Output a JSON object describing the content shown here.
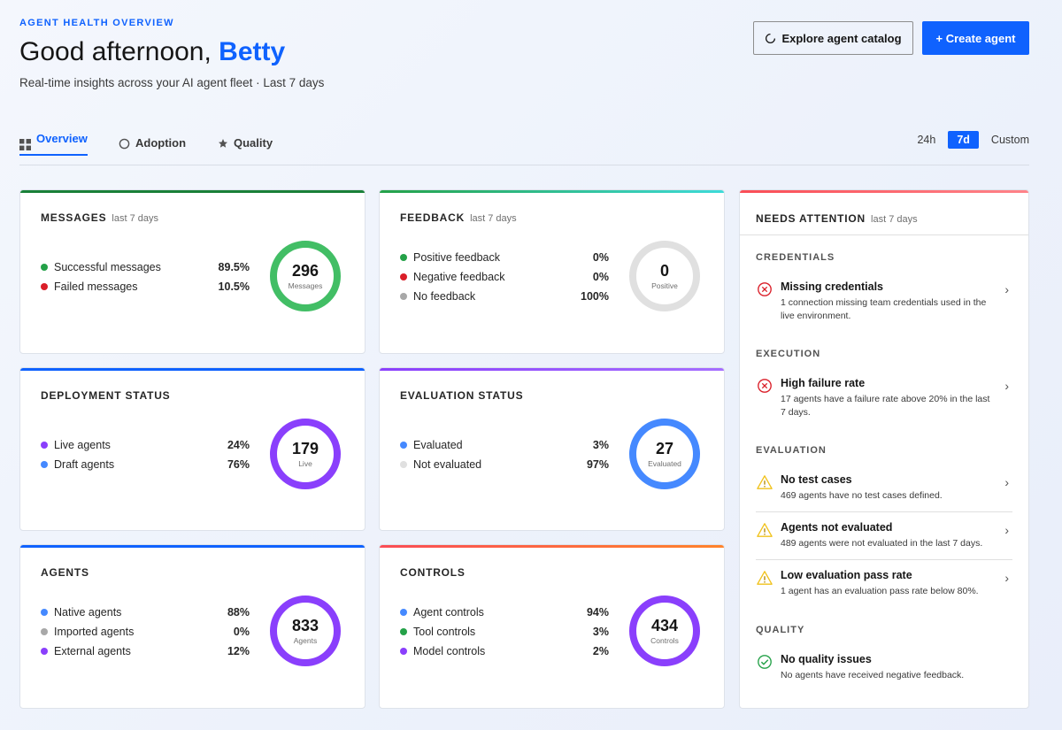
{
  "header": {
    "eyebrow": "AGENT HEALTH OVERVIEW",
    "greeting_prefix": "Good afternoon, ",
    "user_name": "Betty",
    "subtitle": "Real-time insights across your AI agent fleet · Last 7 days"
  },
  "actions": {
    "explore_label": "Explore agent catalog",
    "create_label": "+ Create agent"
  },
  "tabs": [
    {
      "label": "Overview",
      "icon": "grid-icon",
      "active": true
    },
    {
      "label": "Adoption",
      "icon": "circle-icon",
      "active": false
    },
    {
      "label": "Quality",
      "icon": "star-icon",
      "active": false
    }
  ],
  "time_range": {
    "options": [
      "24h",
      "7d",
      "Custom"
    ],
    "selected": "7d"
  },
  "cards": {
    "messages": {
      "title": "MESSAGES",
      "subtitle": "last 7 days",
      "rows": [
        {
          "label": "Successful messages",
          "pct": "89.5%",
          "color": "#24a148"
        },
        {
          "label": "Failed messages",
          "pct": "10.5%",
          "color": "#da1e28"
        }
      ],
      "ring_value": "296",
      "ring_caption": "Messages",
      "ring_color": "#42be65",
      "accent": "#198038"
    },
    "feedback": {
      "title": "FEEDBACK",
      "subtitle": "last 7 days",
      "rows": [
        {
          "label": "Positive feedback",
          "pct": "0%",
          "color": "#24a148"
        },
        {
          "label": "Negative feedback",
          "pct": "0%",
          "color": "#da1e28"
        },
        {
          "label": "No feedback",
          "pct": "100%",
          "color": "#a8a8a8"
        }
      ],
      "ring_value": "0",
      "ring_caption": "Positive",
      "ring_color": "#e0e0e0",
      "accent": "#3ddbd9"
    },
    "deployment": {
      "title": "DEPLOYMENT STATUS",
      "rows": [
        {
          "label": "Live agents",
          "pct": "24%",
          "color": "#8a3ffc"
        },
        {
          "label": "Draft agents",
          "pct": "76%",
          "color": "#4589ff"
        }
      ],
      "ring_value": "179",
      "ring_caption": "Live",
      "ring_color": "#8a3ffc",
      "accent": "#0f62fe"
    },
    "evaluation": {
      "title": "EVALUATION STATUS",
      "rows": [
        {
          "label": "Evaluated",
          "pct": "3%",
          "color": "#4589ff"
        },
        {
          "label": "Not evaluated",
          "pct": "97%",
          "color": "#e0e0e0"
        }
      ],
      "ring_value": "27",
      "ring_caption": "Evaluated",
      "ring_color": "#4589ff",
      "accent": "#8a3ffc"
    },
    "agents": {
      "title": "AGENTS",
      "rows": [
        {
          "label": "Native agents",
          "pct": "88%",
          "color": "#4589ff"
        },
        {
          "label": "Imported agents",
          "pct": "0%",
          "color": "#a8a8a8"
        },
        {
          "label": "External agents",
          "pct": "12%",
          "color": "#8a3ffc"
        }
      ],
      "ring_value": "833",
      "ring_caption": "Agents",
      "ring_color": "#8a3ffc",
      "accent": "#0f62fe"
    },
    "controls": {
      "title": "CONTROLS",
      "rows": [
        {
          "label": "Agent controls",
          "pct": "94%",
          "color": "#4589ff"
        },
        {
          "label": "Tool controls",
          "pct": "3%",
          "color": "#24a148"
        },
        {
          "label": "Model controls",
          "pct": "2%",
          "color": "#8a3ffc"
        }
      ],
      "ring_value": "434",
      "ring_caption": "Controls",
      "ring_color": "#8a3ffc",
      "accent": "#ff832b"
    }
  },
  "attention": {
    "title": "NEEDS ATTENTION",
    "subtitle": "last 7 days",
    "sections": {
      "credentials": {
        "label": "CREDENTIALS",
        "issues": [
          {
            "title": "Missing credentials",
            "desc": "1 connection missing team credentials used in the live environment.",
            "icon": "error-circle-icon"
          }
        ]
      },
      "execution": {
        "label": "EXECUTION",
        "issues": [
          {
            "title": "High failure rate",
            "desc": "17 agents have a failure rate above 20% in the last 7 days.",
            "icon": "error-circle-icon"
          }
        ]
      },
      "evaluation": {
        "label": "EVALUATION",
        "issues": [
          {
            "title": "No test cases",
            "desc": "469 agents have no test cases defined.",
            "icon": "warning-icon"
          },
          {
            "title": "Agents not evaluated",
            "desc": "489 agents were not evaluated in the last 7 days.",
            "icon": "warning-icon"
          },
          {
            "title": "Low evaluation pass rate",
            "desc": "1 agent has an evaluation pass rate below 80%.",
            "icon": "warning-icon"
          }
        ]
      },
      "quality": {
        "label": "QUALITY",
        "issues": [
          {
            "title": "No quality issues",
            "desc": "No agents have received negative feedback.",
            "icon": "check-circle-icon"
          }
        ]
      }
    }
  }
}
